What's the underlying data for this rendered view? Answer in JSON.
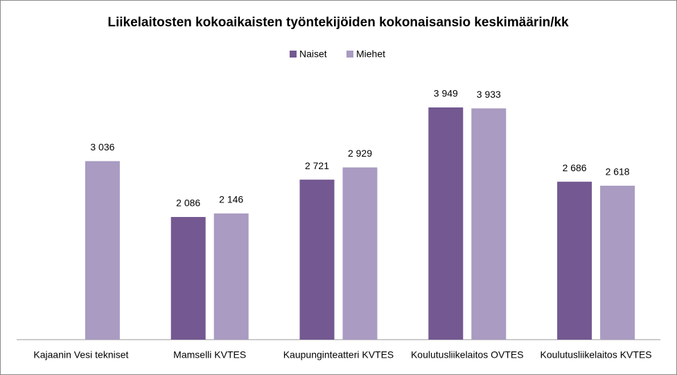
{
  "chart_data": {
    "type": "bar",
    "title": "Liikelaitosten kokoaikaisten työntekijöiden kokonaisansio keskimäärin/kk",
    "categories": [
      "Kajaanin Vesi tekniset",
      "Mamselli KVTES",
      "Kaupunginteatteri KVTES",
      "Koulutusliikelaitos OVTES",
      "Koulutusliikelaitos KVTES"
    ],
    "series": [
      {
        "name": "Naiset",
        "color": "#735891",
        "values": [
          null,
          2086,
          2721,
          3949,
          2686
        ],
        "value_labels": [
          null,
          "2 086",
          "2 721",
          "3 949",
          "2 686"
        ]
      },
      {
        "name": "Miehet",
        "color": "#a99bc1",
        "values": [
          3036,
          2146,
          2929,
          3933,
          2618
        ],
        "value_labels": [
          "3 036",
          "2 146",
          "2 929",
          "3 933",
          "2 618"
        ]
      }
    ],
    "legend": "top"
  }
}
